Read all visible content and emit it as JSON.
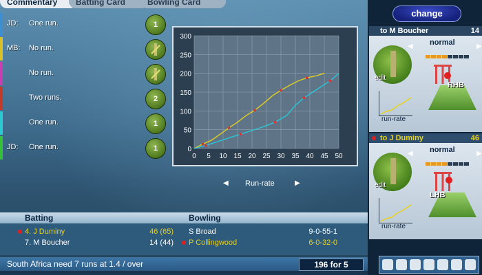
{
  "tabs": [
    "Commentary",
    "Batting Card",
    "Bowling Card"
  ],
  "commentary": [
    {
      "who": "JD:",
      "text": "One run.",
      "ball": "1",
      "bar": "#3c8fd0"
    },
    {
      "who": "MB:",
      "text": "No run.",
      "ball": "",
      "bar": "#d8c02a"
    },
    {
      "who": "",
      "text": "No run.",
      "ball": "",
      "bar": "#c63fb0"
    },
    {
      "who": "",
      "text": "Two runs.",
      "ball": "2",
      "bar": "#c43a2a"
    },
    {
      "who": "",
      "text": "One run.",
      "ball": "1",
      "bar": "#2bc9d0"
    },
    {
      "who": "JD:",
      "text": "One run.",
      "ball": "1",
      "bar": "#36c03a"
    }
  ],
  "chart_data": {
    "type": "line",
    "title": "",
    "x_ticks": [
      0,
      5,
      10,
      15,
      20,
      25,
      30,
      35,
      40,
      45,
      50
    ],
    "y_ticks": [
      0,
      50,
      100,
      150,
      200,
      250,
      300
    ],
    "xlim": [
      0,
      50
    ],
    "ylim": [
      0,
      300
    ],
    "grid": true,
    "series": [
      {
        "color": "#e0d020",
        "x": [
          0,
          3,
          6,
          9,
          12,
          15,
          18,
          21,
          24,
          27,
          30,
          33,
          36,
          39,
          42,
          45
        ],
        "y": [
          0,
          12,
          22,
          38,
          55,
          70,
          88,
          102,
          120,
          140,
          155,
          168,
          180,
          188,
          193,
          200
        ]
      },
      {
        "color": "#28c8d8",
        "x": [
          0,
          4,
          8,
          12,
          16,
          20,
          24,
          28,
          32,
          35,
          38,
          41,
          44,
          47,
          50
        ],
        "y": [
          0,
          8,
          18,
          28,
          38,
          48,
          58,
          70,
          88,
          115,
          135,
          150,
          165,
          180,
          200
        ]
      }
    ],
    "nav_label": "Run-rate"
  },
  "scoreboard": {
    "batting_header": "Batting",
    "bowling_header": "Bowling",
    "batters": [
      {
        "name": "4. J Duminy",
        "score": "46 (65)",
        "striker": true
      },
      {
        "name": "7. M Boucher",
        "score": "14 (44)",
        "striker": false
      }
    ],
    "bowlers": [
      {
        "name": "S Broad",
        "figures": "9-0-55-1",
        "current": false
      },
      {
        "name": "P Collingwood",
        "figures": "6-0-32-0",
        "current": true
      }
    ]
  },
  "status": {
    "message": "South Africa need 7 runs at 1.4 / over",
    "score": "196 for 5"
  },
  "side": {
    "change_label": "change",
    "cards": [
      {
        "name": "to M Boucher",
        "num": "14",
        "mode": "normal",
        "hand": "RHB",
        "edit": "edit",
        "runrate": "run-rate",
        "active": false
      },
      {
        "name": "to J Duminy",
        "num": "46",
        "mode": "normal",
        "hand": "LHB",
        "edit": "edit",
        "runrate": "run-rate",
        "active": true
      }
    ]
  },
  "colors": {
    "accent": "#1a2f8a",
    "yellow": "#e8d21c",
    "cyan": "#28c8d8"
  }
}
